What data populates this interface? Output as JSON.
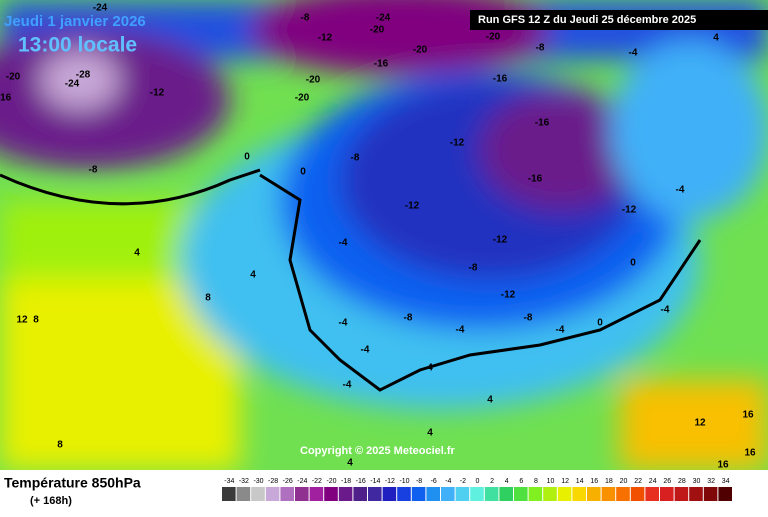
{
  "header": {
    "date": "Jeudi 1 janvier 2026",
    "time": "13:00 locale",
    "run": "Run GFS 12 Z du Jeudi 25 décembre 2025",
    "copyright": "Copyright © 2025 Meteociel.fr"
  },
  "footer": {
    "title": "Température 850hPa",
    "lead": "(+ 168h)"
  },
  "scale": {
    "values": [
      -34,
      -32,
      -30,
      -28,
      -26,
      -24,
      -22,
      -20,
      -18,
      -16,
      -14,
      -12,
      -10,
      -8,
      -6,
      -4,
      -2,
      0,
      2,
      4,
      6,
      8,
      10,
      12,
      14,
      16,
      18,
      20,
      22,
      24,
      26,
      28,
      30,
      32,
      34
    ],
    "colors": [
      "#3a3a3a",
      "#8a8a8a",
      "#c8c8c8",
      "#c8a8d8",
      "#b070c0",
      "#903090",
      "#a020a0",
      "#800080",
      "#6a1a8a",
      "#50208a",
      "#4028a0",
      "#2020c0",
      "#1840e0",
      "#1060f0",
      "#2090f0",
      "#40b0f8",
      "#50d0f0",
      "#60f0e0",
      "#40e0a0",
      "#30d060",
      "#50e040",
      "#80f020",
      "#b0f010",
      "#e8f000",
      "#f8d800",
      "#f8b000",
      "#f89000",
      "#f87000",
      "#f05000",
      "#e83020",
      "#d82020",
      "#c01818",
      "#a01010",
      "#800808",
      "#500000"
    ]
  },
  "map_labels": [
    -24,
    -24,
    -20,
    -20,
    -20,
    -8,
    -4,
    4,
    -16,
    -16,
    -16,
    -16,
    -12,
    -12,
    -12,
    -12,
    -12,
    -8,
    -8,
    -8,
    -8,
    -4,
    -4,
    -4,
    -4,
    -4,
    -4,
    -4,
    -4,
    0,
    0,
    0,
    0,
    4,
    4,
    4,
    4,
    4,
    4,
    8,
    8,
    8,
    12,
    12,
    -28,
    -24,
    -20,
    -12,
    -8,
    -8,
    -12,
    -20,
    -20,
    16,
    16,
    16,
    -16
  ]
}
